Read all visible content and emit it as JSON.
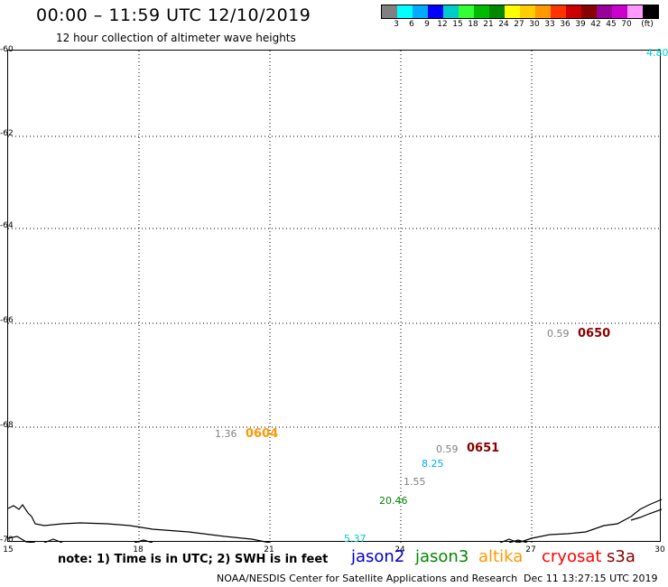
{
  "header": {
    "title": "00:00 – 11:59 UTC 12/10/2019",
    "subtitle": "12 hour collection of altimeter wave heights"
  },
  "legend": {
    "colors": [
      "#808080",
      "#00ffff",
      "#00aaff",
      "#0000ff",
      "#00cccc",
      "#33ff33",
      "#00bb00",
      "#008800",
      "#ffff00",
      "#ffcc00",
      "#ff9900",
      "#ff3300",
      "#cc0000",
      "#880000",
      "#990099",
      "#cc00cc",
      "#ff99ff",
      "#000000"
    ],
    "labels": [
      "3",
      "6",
      "9",
      "12",
      "15",
      "18",
      "21",
      "24",
      "27",
      "30",
      "33",
      "36",
      "39",
      "42",
      "45",
      "70",
      "(ft)"
    ]
  },
  "axes": {
    "y_labels": [
      "-60",
      "-62",
      "-64",
      "-66",
      "-68",
      "-70"
    ],
    "x_labels": [
      "15",
      "18",
      "21",
      "24",
      "27",
      "30"
    ]
  },
  "observations": [
    {
      "text": "4.80",
      "color": "#00cccc"
    },
    {
      "text": "0.59",
      "color": "#808080"
    },
    {
      "text": "0650",
      "color": "#880000",
      "kind": "pass"
    },
    {
      "text": "1.36",
      "color": "#808080"
    },
    {
      "text": "0604",
      "color": "#ff9900",
      "kind": "pass"
    },
    {
      "text": "0.59",
      "color": "#808080"
    },
    {
      "text": "0651",
      "color": "#880000",
      "kind": "pass"
    },
    {
      "text": "8.25",
      "color": "#00aaff"
    },
    {
      "text": "1.55",
      "color": "#808080"
    },
    {
      "text": "20.46",
      "color": "#008800"
    },
    {
      "text": "5.37",
      "color": "#00cccc"
    }
  ],
  "footer": {
    "note": "note: 1) Time is in UTC; 2) SWH is in feet",
    "satellites": [
      {
        "name": "jason2",
        "color": "#0000cc"
      },
      {
        "name": "jason3",
        "color": "#008800"
      },
      {
        "name": "altika",
        "color": "#ff9900"
      },
      {
        "name": "cryosat",
        "color": "#ff0000"
      },
      {
        "name": "s3a",
        "color": "#880000"
      }
    ],
    "credit": "NOAA/NESDIS Center for Satellite Applications and Research",
    "timestamp": "Dec 11 13:27:15 UTC 2019"
  }
}
